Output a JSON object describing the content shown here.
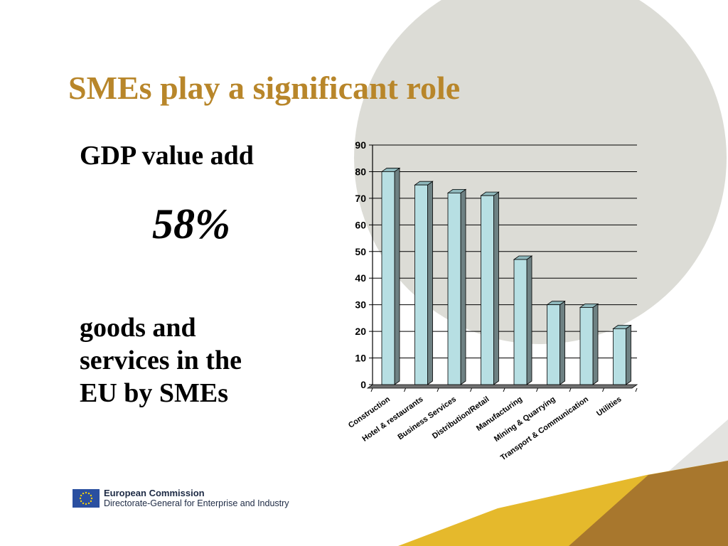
{
  "slide": {
    "title": "SMEs play a significant role",
    "title_color": "#b8862a",
    "gdp_label": "GDP value add",
    "gdp_value": "58%",
    "caption_lines": [
      "goods and",
      "services in the",
      "EU by SMEs"
    ]
  },
  "footer": {
    "organization": "European Commission",
    "department": "Directorate-General for Enterprise and Industry",
    "logo_icon": "eu-flag-icon",
    "logo_color": "#2a4fa0",
    "star_color": "#f5d20b"
  },
  "decor": {
    "circle_color": "#dcdcd6",
    "band_gold": "#e5b92c",
    "band_brown": "#a8772d",
    "band_grey": "#e3e3e0"
  },
  "chart_data": {
    "type": "bar",
    "categories": [
      "Construction",
      "Hotel & restaurants",
      "Business Services",
      "Distribution/Retail",
      "Manufacturing",
      "Mining & Quarrying",
      "Transport & Communication",
      "Utilities"
    ],
    "values": [
      80,
      75,
      72,
      71,
      47,
      30,
      29,
      21
    ],
    "ylim": [
      0,
      90
    ],
    "yticks": [
      "0",
      "10",
      "20",
      "30",
      "40",
      "50",
      "60",
      "70",
      "80",
      "90"
    ],
    "bar_color": "#b7dfe3",
    "grid": true,
    "three_d": true
  }
}
